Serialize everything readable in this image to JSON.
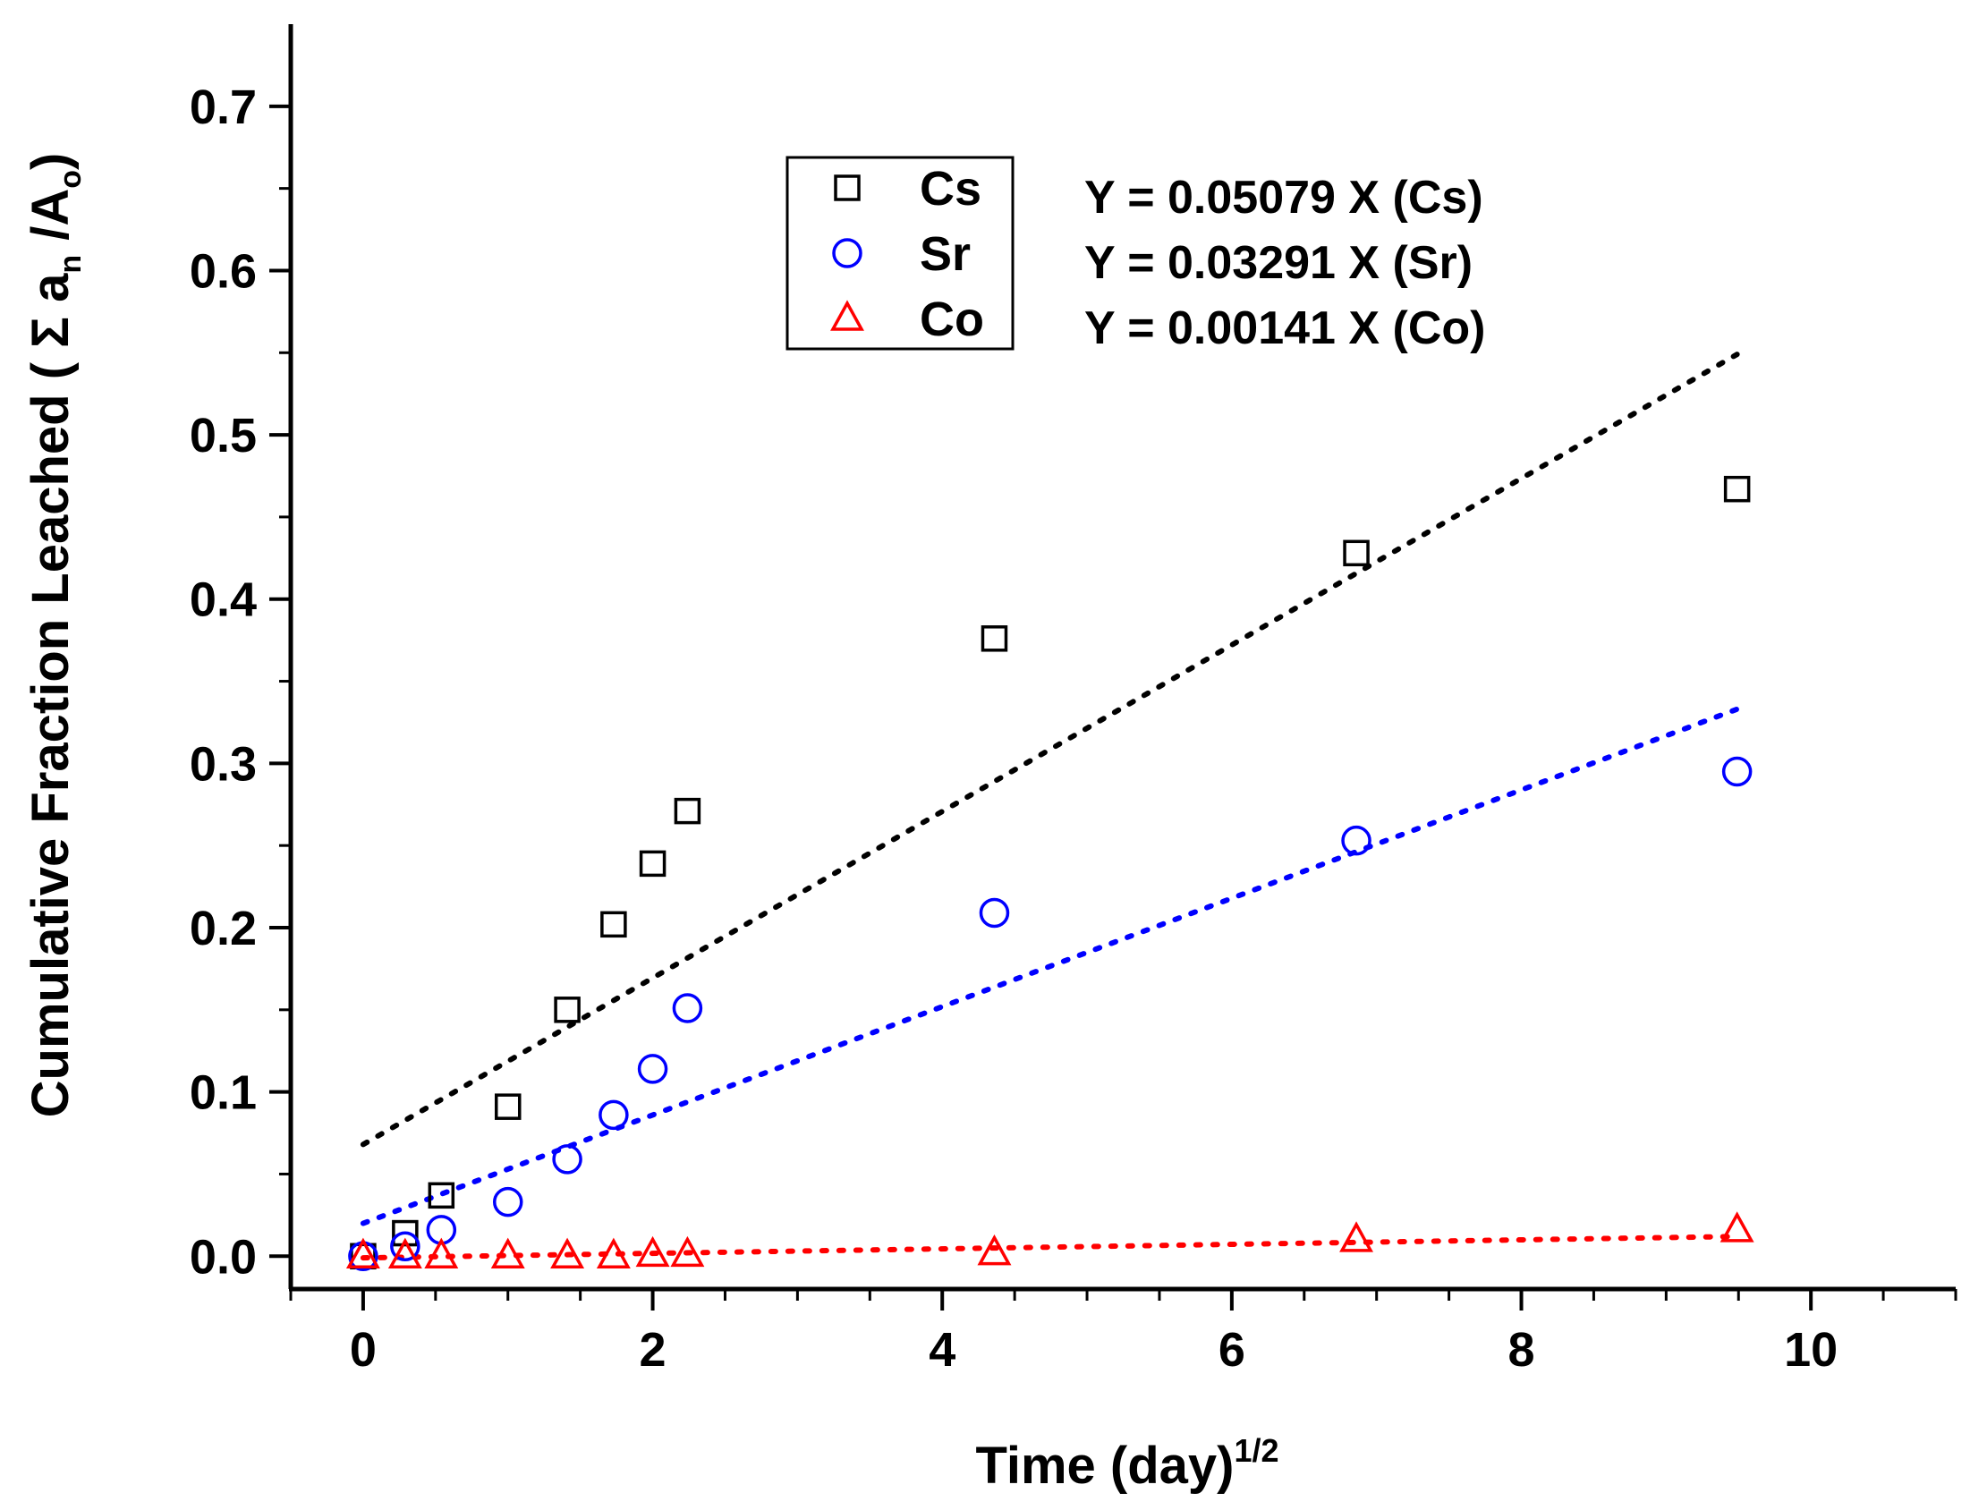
{
  "chart_data": {
    "type": "scatter",
    "title": "",
    "xlabel": "Time (day)",
    "xlabel_sup": "1/2",
    "ylabel": "Cumulative Fraction Leached ( Σ a",
    "ylabel_sub_n": "n",
    "ylabel_mid": " /A",
    "ylabel_sub_o": "o",
    "ylabel_end": ")",
    "xlim": [
      -0.5,
      11
    ],
    "ylim": [
      -0.02,
      0.75
    ],
    "xticks": [
      0,
      2,
      4,
      6,
      8,
      10
    ],
    "xtick_labels": [
      "0",
      "2",
      "4",
      "6",
      "8",
      "10"
    ],
    "yticks": [
      0.0,
      0.1,
      0.2,
      0.3,
      0.4,
      0.5,
      0.6,
      0.7
    ],
    "ytick_labels": [
      "0.0",
      "0.1",
      "0.2",
      "0.3",
      "0.4",
      "0.5",
      "0.6",
      "0.7"
    ],
    "legend_position": "top-center",
    "series": [
      {
        "name": "Cs",
        "marker": "square",
        "color": "#000000",
        "x": [
          0,
          0.29,
          0.54,
          1.0,
          1.41,
          1.73,
          2.0,
          2.24,
          4.36,
          6.86,
          9.49
        ],
        "y": [
          0.0,
          0.014,
          0.037,
          0.091,
          0.15,
          0.202,
          0.239,
          0.271,
          0.376,
          0.428,
          0.467
        ],
        "fit": {
          "equation": "Y =  0.05079 X (Cs)",
          "x": [
            0,
            9.49
          ],
          "y": [
            0.068,
            0.549
          ]
        }
      },
      {
        "name": "Sr",
        "marker": "circle",
        "color": "#0000ff",
        "x": [
          0,
          0.29,
          0.54,
          1.0,
          1.41,
          1.73,
          2.0,
          2.24,
          4.36,
          6.86,
          9.49
        ],
        "y": [
          0.0,
          0.006,
          0.016,
          0.033,
          0.059,
          0.086,
          0.114,
          0.151,
          0.209,
          0.253,
          0.295
        ],
        "fit": {
          "equation": "Y =  0.03291 X (Sr)",
          "x": [
            0,
            9.49
          ],
          "y": [
            0.02,
            0.333
          ]
        }
      },
      {
        "name": "Co",
        "marker": "triangle",
        "color": "#ff0000",
        "x": [
          0,
          0.29,
          0.54,
          1.0,
          1.41,
          1.73,
          2.0,
          2.24,
          4.36,
          6.86,
          9.49
        ],
        "y": [
          0.0,
          0.0,
          0.0,
          0.0,
          0.0,
          0.0,
          0.001,
          0.001,
          0.002,
          0.01,
          0.016
        ],
        "fit": {
          "equation": "Y =  0.00141 X (Co)",
          "x": [
            0,
            9.49
          ],
          "y": [
            -0.001,
            0.012
          ]
        }
      }
    ]
  }
}
